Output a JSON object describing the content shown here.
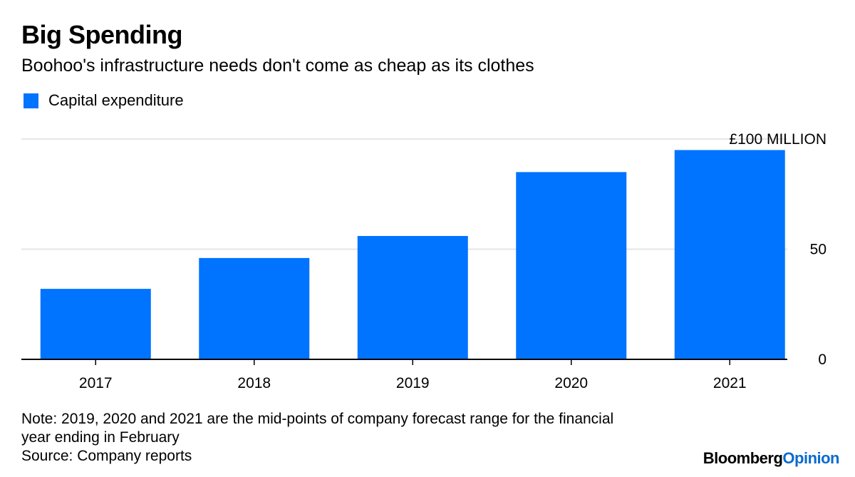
{
  "header": {
    "title": "Big Spending",
    "subtitle": "Boohoo's infrastructure needs don't come as cheap as its clothes"
  },
  "legend": {
    "label": "Capital expenditure",
    "color": "#0073ff"
  },
  "chart_data": {
    "type": "bar",
    "title": "Big Spending",
    "subtitle": "Boohoo's infrastructure needs don't come as cheap as its clothes",
    "categories": [
      "2017",
      "2018",
      "2019",
      "2020",
      "2021"
    ],
    "series": [
      {
        "name": "Capital expenditure",
        "values": [
          32,
          46,
          56,
          85,
          95
        ]
      }
    ],
    "y_ticks": [
      "0",
      "50",
      "£100 MILLION"
    ],
    "y_tick_values": [
      0,
      50,
      100
    ],
    "ylim": [
      0,
      100
    ],
    "y_axis_side": "right",
    "grid": true,
    "legend_position": "top-left",
    "bar_color": "#0073ff"
  },
  "footer": {
    "note_line1": "Note: 2019, 2020 and 2021 are the mid-points of company forecast range for the financial",
    "note_line2": "year ending in February",
    "source": "Source: Company reports",
    "brand_part1": "Bloomberg",
    "brand_part2": "Opinion"
  }
}
